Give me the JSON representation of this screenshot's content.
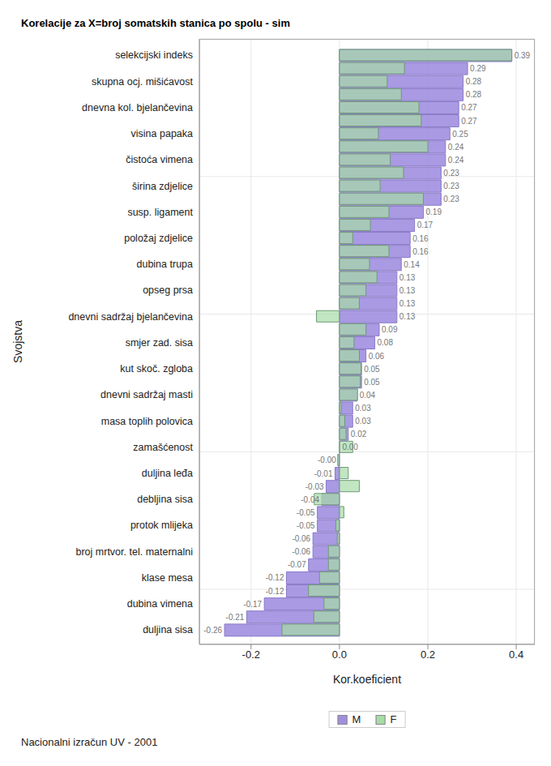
{
  "chart_data": {
    "type": "bar",
    "orientation": "horizontal",
    "title": "Korelacije za X=broj somatskih stanica po spolu - sim",
    "x_label": "Kor.koeficient",
    "y_label": "Svojstva",
    "footnote": "Nacionalni izračun UV - 2001",
    "categories": [
      "selekcijski indeks",
      null,
      "skupna ocj. mišićavost",
      null,
      "dnevna kol. bjelančevina",
      null,
      "visina papaka",
      null,
      "čistoća vimena",
      null,
      "širina zdjelice",
      null,
      "susp. ligament",
      null,
      "položaj zdjelice",
      null,
      "dubina trupa",
      null,
      "opseg prsa",
      null,
      "dnevni sadržaj bjelančevina",
      null,
      "smjer zad. sisa",
      null,
      "kut skoč. zgloba",
      null,
      "dnevni sadržaj masti",
      null,
      "masa toplih polovica",
      null,
      "zamašćenost",
      null,
      "duljina leđa",
      null,
      "debljina sisa",
      null,
      "protok mlijeka",
      null,
      "broj mrtvor. tel. maternalni",
      null,
      "klase mesa",
      null,
      "dubina vimena",
      null,
      "duljina sisa"
    ],
    "series": [
      {
        "name": "M",
        "color": "#a08fe0",
        "data_labels": true,
        "values": [
          0.39,
          0.29,
          0.28,
          0.28,
          0.27,
          0.27,
          0.25,
          0.24,
          0.24,
          0.23,
          0.23,
          0.23,
          0.19,
          0.17,
          0.16,
          0.16,
          0.14,
          0.13,
          0.13,
          0.13,
          0.13,
          0.09,
          0.08,
          0.06,
          0.05,
          0.05,
          0.04,
          0.03,
          0.03,
          0.02,
          0.001,
          -0.002,
          -0.01,
          -0.03,
          -0.04,
          -0.05,
          -0.05,
          -0.06,
          -0.06,
          -0.07,
          -0.12,
          -0.12,
          -0.17,
          -0.21,
          -0.26
        ],
        "value_labels": [
          "0.39",
          "0.29",
          "0.28",
          "0.28",
          "0.27",
          "0.27",
          "0.25",
          "0.24",
          "0.24",
          "0.23",
          "0.23",
          "0.23",
          "0.19",
          "0.17",
          "0.16",
          "0.16",
          "0.14",
          "0.13",
          "0.13",
          "0.13",
          "0.13",
          "0.09",
          "0.08",
          "0.06",
          "0.05",
          "0.05",
          "0.04",
          "0.03",
          "0.03",
          "0.02",
          "0.00",
          "-0.00",
          "-0.01",
          "-0.03",
          "-0.04",
          "-0.05",
          "-0.05",
          "-0.06",
          "-0.06",
          "-0.07",
          "-0.12",
          "-0.12",
          "-0.17",
          "-0.21",
          "-0.26"
        ]
      },
      {
        "name": "F",
        "color": "#a6dca6",
        "values": [
          0.39,
          0.147,
          0.108,
          0.14,
          0.18,
          0.185,
          0.088,
          0.2,
          0.115,
          0.145,
          0.092,
          0.19,
          0.112,
          0.07,
          0.03,
          0.112,
          0.068,
          0.085,
          0.06,
          0.045,
          -0.052,
          0.06,
          0.033,
          0.045,
          0.049,
          0.047,
          0.041,
          0.004,
          0.012,
          0.015,
          0.03,
          -0.004,
          0.02,
          0.045,
          -0.057,
          0.01,
          -0.008,
          -0.005,
          -0.025,
          -0.025,
          -0.045,
          -0.07,
          -0.035,
          -0.058,
          -0.13
        ]
      }
    ],
    "xlim": [
      -0.317,
      0.442
    ],
    "xticks": [
      -0.2,
      {
        "value": 0,
        "label": "0.0"
      },
      0.2,
      0.4
    ],
    "grid": true,
    "legend": "bottom"
  }
}
